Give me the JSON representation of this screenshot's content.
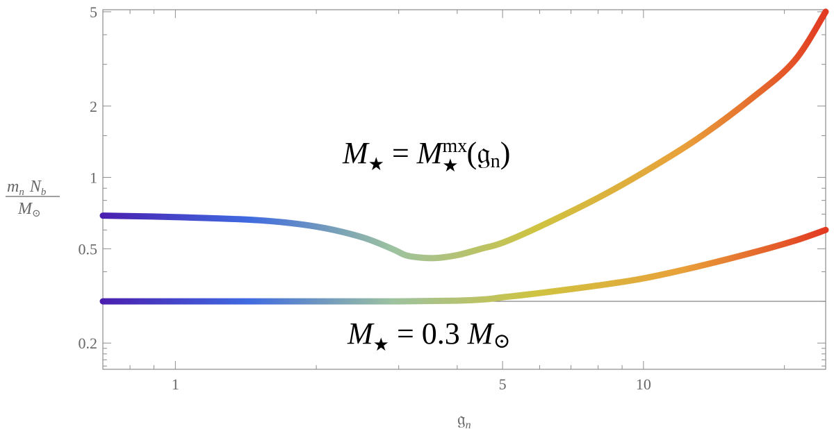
{
  "chart_data": {
    "type": "line",
    "title": "",
    "xlabel": "𝔤",
    "xlabel_sub": "n",
    "ylabel_num_a": "m",
    "ylabel_num_a_sub": "n",
    "ylabel_num_b": "N",
    "ylabel_num_b_sub": "b",
    "ylabel_den": "M",
    "ylabel_den_sub": "⊙",
    "x_scale": "log",
    "y_scale": "log",
    "xlim": [
      0.7,
      24.5
    ],
    "ylim": [
      0.155,
      5.1
    ],
    "x_ticks_major": [
      {
        "value": 1,
        "label": "1"
      },
      {
        "value": 5,
        "label": "5"
      },
      {
        "value": 10,
        "label": "10"
      }
    ],
    "x_ticks_minor": [
      0.7,
      0.8,
      0.9,
      2,
      3,
      4,
      6,
      7,
      8,
      9,
      20
    ],
    "y_ticks_major": [
      {
        "value": 0.2,
        "label": "0.2"
      },
      {
        "value": 0.5,
        "label": "0.5"
      },
      {
        "value": 1,
        "label": "1"
      },
      {
        "value": 2,
        "label": "2"
      },
      {
        "value": 5,
        "label": "5"
      }
    ],
    "y_ticks_minor": [
      0.16,
      0.17,
      0.18,
      0.19,
      0.3,
      0.4,
      0.6,
      0.7,
      0.8,
      0.9,
      1.5,
      3,
      4
    ],
    "reference_line": {
      "y": 0.3
    },
    "color_gradient": [
      "#4a1fb0",
      "#3f6ae0",
      "#9cc2a0",
      "#cfc340",
      "#e8a13a",
      "#e23a22"
    ],
    "series": [
      {
        "x": [
          0.7,
          1.0,
          1.5,
          2.0,
          2.5,
          2.9,
          3.1,
          3.3,
          3.6,
          4.0,
          4.5,
          5.0,
          6.0,
          8.0,
          10.0,
          13.0,
          17.0,
          21.0,
          24.5
        ],
        "y": [
          0.69,
          0.68,
          0.66,
          0.62,
          0.56,
          0.5,
          0.47,
          0.46,
          0.457,
          0.47,
          0.5,
          0.53,
          0.62,
          0.82,
          1.05,
          1.45,
          2.15,
          3.1,
          5.0
        ]
      },
      {
        "x": [
          0.7,
          1.0,
          2.0,
          3.0,
          4.0,
          4.6,
          5.0,
          6.0,
          8.0,
          10.0,
          13.0,
          17.0,
          21.0,
          24.5
        ],
        "y": [
          0.3,
          0.3,
          0.3,
          0.3,
          0.302,
          0.306,
          0.312,
          0.325,
          0.35,
          0.375,
          0.42,
          0.48,
          0.54,
          0.6
        ]
      }
    ],
    "annotations": [
      {
        "id": "upper",
        "text_main": "M",
        "text_sub": "★",
        "text_eq": " = ",
        "text_main2": "M",
        "text_sup2": "mx",
        "text_sub2": "★",
        "text_open": "(",
        "text_g": "𝔤",
        "text_gsub": "n",
        "text_close": ")"
      },
      {
        "id": "lower",
        "text_main": "M",
        "text_sub": "★",
        "text_eq": " = 0.3 ",
        "text_main2": "M",
        "text_sub2": "⊙"
      }
    ]
  }
}
